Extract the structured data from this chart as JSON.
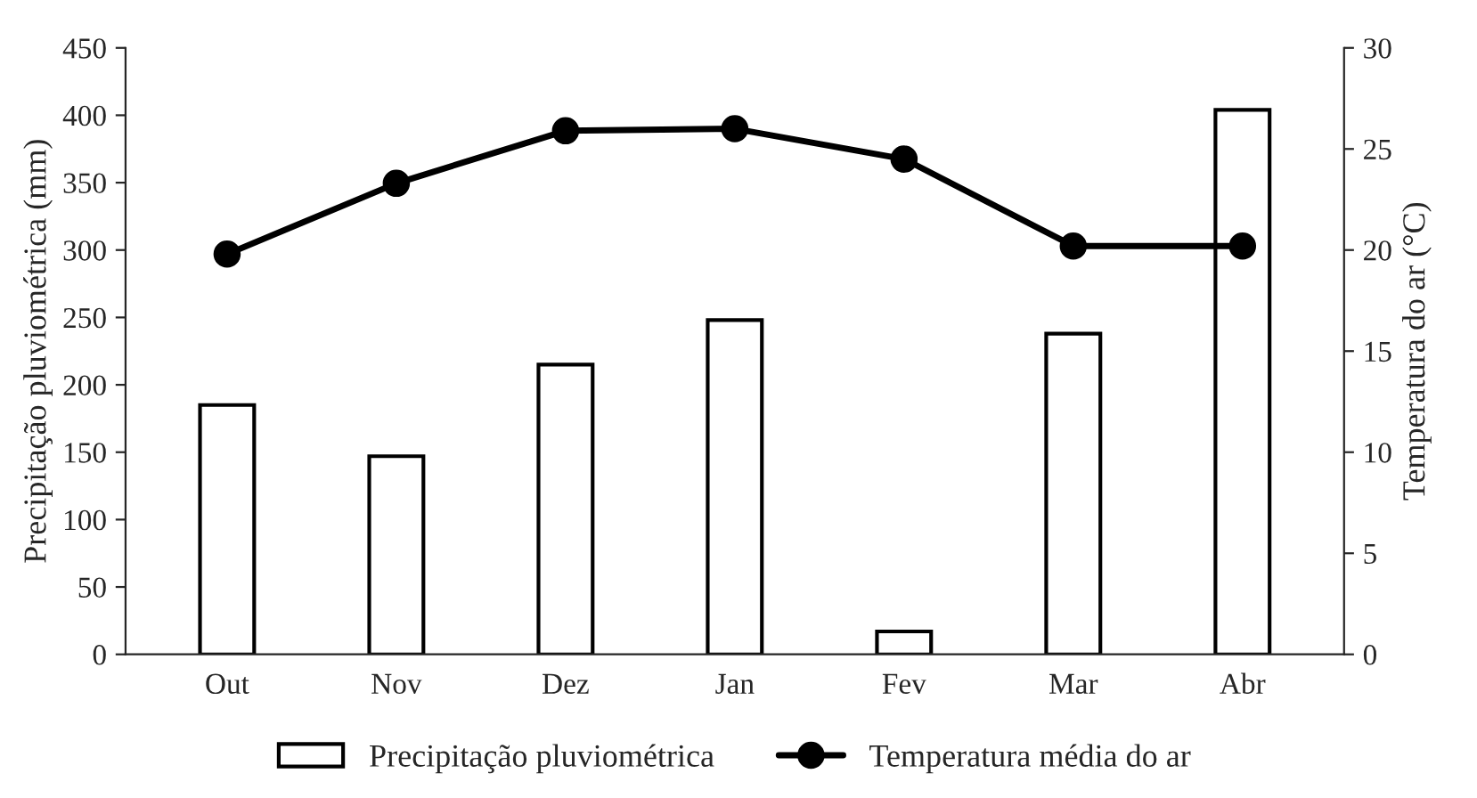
{
  "chart_data": {
    "type": "bar",
    "categories": [
      "Out",
      "Nov",
      "Dez",
      "Jan",
      "Fev",
      "Mar",
      "Abr"
    ],
    "ylabel": "Precipitação pluviométrica (mm)",
    "y2label": "Temperatura do ar (°C)",
    "ylim": [
      0,
      450
    ],
    "yticks": [
      0,
      50,
      100,
      150,
      200,
      250,
      300,
      350,
      400,
      450
    ],
    "y2lim": [
      0,
      30
    ],
    "y2ticks": [
      0,
      5,
      10,
      15,
      20,
      25,
      30
    ],
    "legend": "bottom",
    "grid": false,
    "series": [
      {
        "name": "Precipitação pluviométrica",
        "color": "#ffffff",
        "values": [
          185,
          147,
          215,
          248,
          17,
          238,
          404
        ]
      },
      {
        "name": "Temperatura média do ar",
        "type": "line",
        "axis": "y2",
        "color": "#000000",
        "marker": "circle",
        "line_style": "solid",
        "values": [
          19.8,
          23.3,
          25.9,
          26.0,
          24.5,
          20.2,
          20.2
        ]
      }
    ]
  }
}
